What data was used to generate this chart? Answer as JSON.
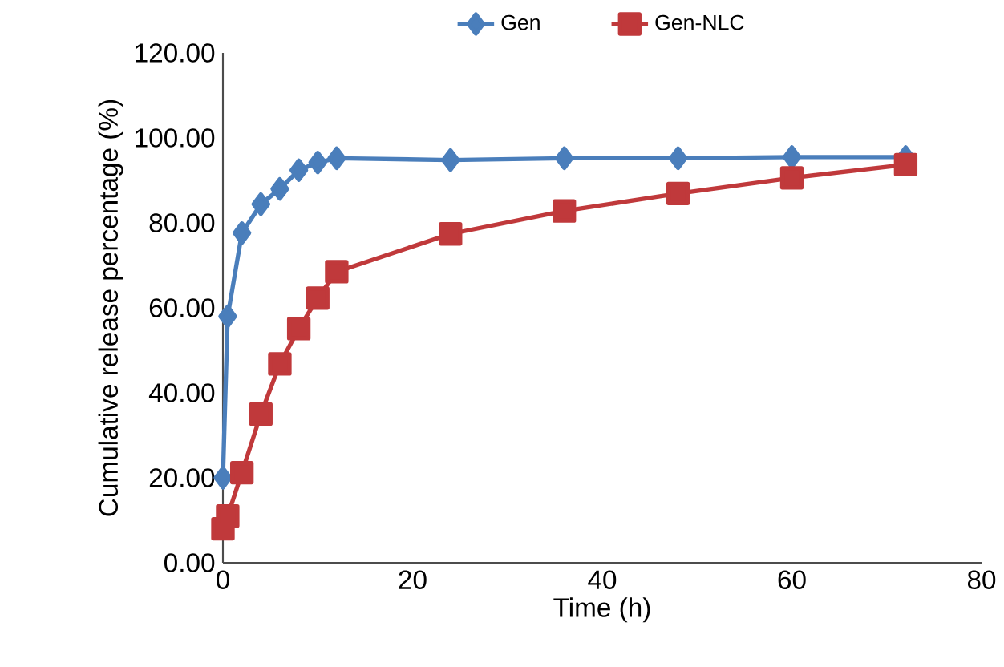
{
  "chart_data": {
    "type": "line",
    "xlabel": "Time (h)",
    "ylabel": "Cumulative release percentage (%)",
    "xlim": [
      0,
      80
    ],
    "xticks": [
      0,
      20,
      40,
      60,
      80
    ],
    "ylim": [
      0,
      120
    ],
    "yticks": [
      {
        "value": 0,
        "label": "0.00"
      },
      {
        "value": 20,
        "label": "20.00"
      },
      {
        "value": 40,
        "label": "40.00"
      },
      {
        "value": 60,
        "label": "60.00"
      },
      {
        "value": 80,
        "label": "80.00"
      },
      {
        "value": 100,
        "label": "100.00"
      },
      {
        "value": 120,
        "label": "120.00"
      }
    ],
    "legend": "top",
    "grid": false,
    "series": [
      {
        "name": "Gen",
        "color": "#4a7ebb",
        "marker": "diamond",
        "x": [
          0,
          0.5,
          2,
          4,
          6,
          8,
          10,
          12,
          24,
          36,
          48,
          60,
          72
        ],
        "values": [
          20,
          58,
          77.6,
          84.4,
          88,
          92.4,
          94.2,
          95.2,
          94.8,
          95.2,
          95.2,
          95.5,
          95.5
        ]
      },
      {
        "name": "Gen-NLC",
        "color": "#c0393b",
        "marker": "square",
        "x": [
          0,
          0.5,
          2,
          4,
          6,
          8,
          10,
          12,
          24,
          36,
          48,
          60,
          72
        ],
        "values": [
          8,
          11,
          21.2,
          35,
          46.8,
          55.1,
          62.3,
          68.5,
          77.4,
          82.8,
          86.9,
          90.6,
          93.7
        ]
      }
    ]
  }
}
